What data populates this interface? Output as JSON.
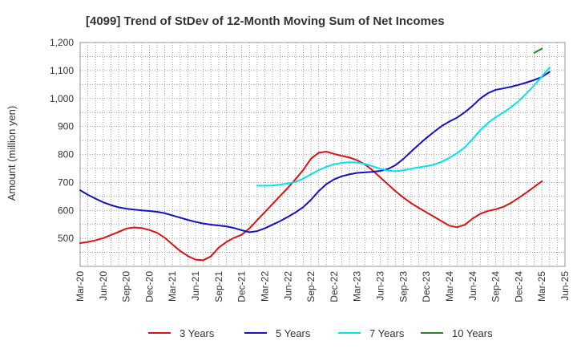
{
  "chart_data": {
    "type": "line",
    "title": "[4099]  Trend of StDev of 12-Month Moving Sum of Net Incomes",
    "ylabel": "Amount (million yen)",
    "xlabel": "",
    "ylim": [
      400,
      1200
    ],
    "yticks": [
      500,
      600,
      700,
      800,
      900,
      1000,
      1100,
      1200
    ],
    "ytick_labels": [
      "500",
      "600",
      "700",
      "800",
      "900",
      "1,000",
      "1,100",
      "1,200"
    ],
    "xticks": [
      "Mar-20",
      "Jun-20",
      "Sep-20",
      "Dec-20",
      "Mar-21",
      "Jun-21",
      "Sep-21",
      "Dec-21",
      "Mar-22",
      "Jun-22",
      "Sep-22",
      "Dec-22",
      "Mar-23",
      "Jun-23",
      "Sep-23",
      "Dec-23",
      "Mar-24",
      "Jun-24",
      "Sep-24",
      "Dec-24",
      "Mar-25",
      "Jun-25"
    ],
    "grid": true,
    "legend_position": "bottom",
    "series": [
      {
        "name": "3 Years",
        "color": "#dd1111",
        "start": "Mar-20",
        "values": [
          483,
          487,
          493,
          501,
          512,
          523,
          535,
          539,
          537,
          530,
          520,
          502,
          478,
          455,
          437,
          424,
          422,
          436,
          467,
          487,
          502,
          513,
          536,
          565,
          594,
          623,
          652,
          681,
          712,
          745,
          785,
          806,
          810,
          802,
          795,
          789,
          779,
          765,
          743,
          718,
          693,
          668,
          646,
          626,
          609,
          593,
          577,
          561,
          545,
          540,
          549,
          571,
          588,
          598,
          604,
          613,
          627,
          645,
          664,
          684,
          704
        ]
      },
      {
        "name": "5 Years",
        "color": "#1111cc",
        "start": "Mar-20",
        "values": [
          672,
          656,
          642,
          629,
          619,
          611,
          606,
          603,
          600,
          598,
          595,
          590,
          582,
          574,
          566,
          559,
          553,
          549,
          546,
          543,
          537,
          529,
          522,
          526,
          536,
          549,
          562,
          577,
          593,
          612,
          638,
          669,
          694,
          711,
          722,
          729,
          734,
          736,
          738,
          741,
          748,
          762,
          784,
          810,
          835,
          859,
          881,
          902,
          918,
          932,
          951,
          974,
          1000,
          1019,
          1031,
          1036,
          1042,
          1049,
          1057,
          1066,
          1077,
          1095
        ]
      },
      {
        "name": "7 Years",
        "color": "#00e5ee",
        "start": "Feb-22",
        "values": [
          688,
          688,
          689,
          692,
          696,
          702,
          714,
          729,
          744,
          756,
          765,
          770,
          772,
          771,
          766,
          758,
          749,
          742,
          740,
          743,
          749,
          754,
          758,
          764,
          774,
          788,
          805,
          826,
          855,
          887,
          913,
          933,
          950,
          969,
          991,
          1018,
          1047,
          1079,
          1111
        ]
      },
      {
        "name": "10 Years",
        "color": "#228822",
        "start": "Feb-25",
        "values": [
          1163,
          1178
        ]
      }
    ]
  }
}
